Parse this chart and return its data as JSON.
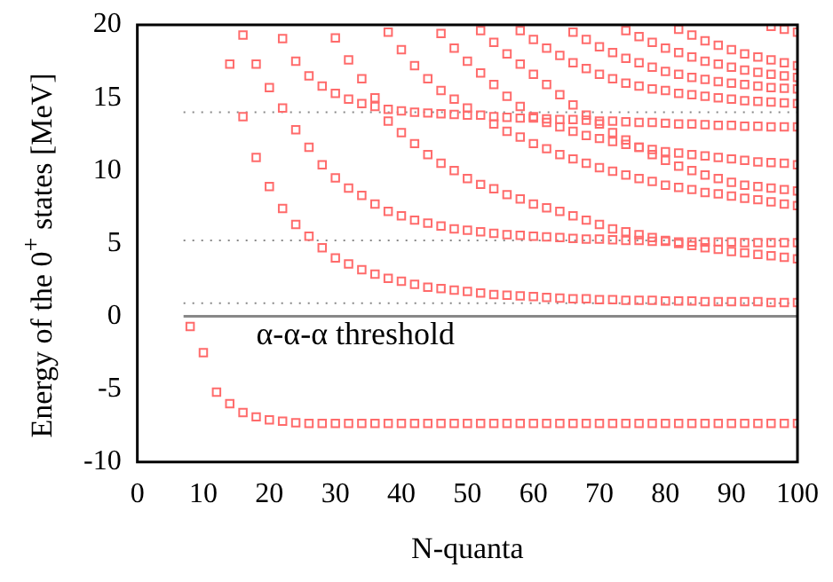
{
  "chart_data": {
    "type": "scatter",
    "xlabel": "N-quanta",
    "ylabel": "Energy of the 0$^{+}$ states [MeV]",
    "x": [
      8,
      10,
      12,
      14,
      16,
      18,
      20,
      22,
      24,
      26,
      28,
      30,
      32,
      34,
      36,
      38,
      40,
      42,
      44,
      46,
      48,
      50,
      52,
      54,
      56,
      58,
      60,
      62,
      64,
      66,
      68,
      70,
      72,
      74,
      76,
      78,
      80,
      82,
      84,
      86,
      88,
      90,
      92,
      94,
      96,
      98,
      100
    ],
    "series": [
      {
        "color": "#ff6b6b",
        "values": [
          -0.7,
          -2.5,
          -5.2,
          -6.0,
          -6.6,
          -6.9,
          -7.1,
          -7.2,
          -7.3,
          -7.35,
          -7.35,
          -7.35,
          -7.35,
          -7.35,
          -7.35,
          -7.35,
          -7.35,
          -7.35,
          -7.35,
          -7.35,
          -7.35,
          -7.35,
          -7.35,
          -7.35,
          -7.35,
          -7.35,
          -7.35,
          -7.35,
          -7.35,
          -7.35,
          -7.35,
          -7.35,
          -7.35,
          -7.35,
          -7.35,
          -7.35,
          -7.35,
          -7.35,
          -7.35,
          -7.35,
          -7.35,
          -7.35,
          -7.35,
          -7.35,
          -7.35,
          -7.35,
          -7.35
        ]
      },
      {
        "color": "#ff6b6b",
        "values": [
          null,
          null,
          null,
          17.3,
          13.7,
          10.9,
          8.9,
          7.4,
          6.3,
          5.5,
          4.7,
          4.0,
          3.6,
          3.2,
          2.9,
          2.6,
          2.4,
          2.2,
          2.0,
          1.9,
          1.8,
          1.7,
          1.6,
          1.5,
          1.45,
          1.4,
          1.35,
          1.3,
          1.25,
          1.2,
          1.2,
          1.15,
          1.15,
          1.1,
          1.1,
          1.1,
          1.05,
          1.05,
          1.05,
          1.0,
          1.0,
          1.0,
          1.0,
          1.0,
          0.95,
          0.95,
          0.95
        ]
      },
      {
        "color": "#ff6b6b",
        "values": [
          null,
          null,
          null,
          null,
          19.3,
          17.3,
          15.7,
          14.3,
          12.8,
          11.6,
          10.4,
          9.5,
          8.8,
          8.3,
          7.7,
          7.2,
          6.9,
          6.6,
          6.4,
          6.2,
          6.0,
          5.9,
          5.8,
          5.7,
          5.6,
          5.55,
          5.5,
          5.45,
          5.4,
          5.35,
          5.3,
          5.3,
          5.25,
          5.2,
          5.2,
          5.15,
          5.15,
          5.1,
          5.1,
          5.1,
          5.1,
          5.1,
          5.05,
          5.05,
          5.05,
          5.05,
          5.05
        ]
      },
      {
        "color": "#ff6b6b",
        "values": [
          null,
          null,
          null,
          null,
          null,
          null,
          null,
          19.05,
          17.5,
          16.5,
          15.8,
          15.3,
          14.9,
          14.6,
          14.4,
          14.2,
          14.1,
          14.0,
          13.95,
          13.9,
          13.85,
          13.8,
          null,
          13.7,
          13.65,
          13.6,
          13.6,
          13.55,
          13.5,
          13.5,
          13.45,
          13.4,
          13.4,
          13.35,
          13.3,
          13.3,
          13.25,
          13.2,
          13.2,
          13.15,
          13.1,
          13.1,
          13.05,
          13.05,
          13.0,
          13.0,
          13.0
        ]
      },
      {
        "color": "#ff6b6b",
        "values": [
          null,
          null,
          null,
          null,
          null,
          null,
          null,
          null,
          null,
          null,
          null,
          19.1,
          17.6,
          16.3,
          15.0,
          13.4,
          12.6,
          11.85,
          11.1,
          10.5,
          10.0,
          9.45,
          9.05,
          8.75,
          8.35,
          8.05,
          7.7,
          7.45,
          7.2,
          6.9,
          6.6,
          6.3,
          6.0,
          5.8,
          5.6,
          5.4,
          5.2,
          5.0,
          4.85,
          4.7,
          4.6,
          4.45,
          4.35,
          4.25,
          4.15,
          4.05,
          3.95
        ]
      },
      {
        "color": "#ff6b6b",
        "values": [
          null,
          null,
          null,
          null,
          null,
          null,
          null,
          null,
          null,
          null,
          null,
          null,
          null,
          null,
          null,
          19.5,
          18.3,
          17.2,
          16.3,
          15.5,
          14.9,
          14.3,
          13.8,
          13.2,
          12.7,
          12.3,
          11.85,
          11.5,
          11.1,
          10.8,
          10.5,
          10.2,
          9.95,
          9.7,
          9.45,
          9.25,
          9.0,
          8.85,
          8.7,
          8.5,
          8.4,
          8.25,
          8.1,
          8.0,
          7.85,
          7.7,
          7.6
        ]
      },
      {
        "color": "#ff6b6b",
        "values": [
          null,
          null,
          null,
          null,
          null,
          null,
          null,
          null,
          null,
          null,
          null,
          null,
          null,
          null,
          null,
          null,
          null,
          null,
          null,
          19.4,
          18.4,
          17.5,
          16.7,
          15.9,
          15.1,
          14.4,
          13.7,
          13.3,
          13.0,
          12.7,
          12.4,
          12.2,
          12.0,
          11.8,
          11.6,
          11.45,
          11.3,
          11.2,
          11.1,
          11.0,
          10.9,
          10.8,
          10.7,
          10.6,
          10.55,
          10.5,
          10.4
        ]
      },
      {
        "color": "#ff6b6b",
        "values": [
          null,
          null,
          null,
          null,
          null,
          null,
          null,
          null,
          null,
          null,
          null,
          null,
          null,
          null,
          null,
          null,
          null,
          null,
          null,
          null,
          null,
          null,
          19.6,
          18.8,
          18.0,
          17.3,
          16.6,
          15.9,
          15.2,
          14.5,
          13.8,
          13.2,
          12.6,
          12.1,
          11.6,
          11.1,
          10.7,
          10.3,
          10.0,
          9.7,
          9.45,
          9.2,
          9.0,
          8.9,
          8.8,
          8.7,
          8.6
        ]
      },
      {
        "color": "#ff6b6b",
        "values": [
          null,
          null,
          null,
          null,
          null,
          null,
          null,
          null,
          null,
          null,
          null,
          null,
          null,
          null,
          null,
          null,
          null,
          null,
          null,
          null,
          null,
          null,
          null,
          null,
          null,
          19.6,
          19.0,
          18.4,
          17.9,
          17.4,
          17.0,
          16.6,
          16.3,
          16.0,
          15.8,
          15.6,
          15.5,
          15.3,
          15.2,
          15.1,
          15.0,
          14.9,
          14.8,
          14.75,
          14.7,
          14.65,
          14.6
        ]
      },
      {
        "color": "#ff6b6b",
        "values": [
          null,
          null,
          null,
          null,
          null,
          null,
          null,
          null,
          null,
          null,
          null,
          null,
          null,
          null,
          null,
          null,
          null,
          null,
          null,
          null,
          null,
          null,
          null,
          null,
          null,
          null,
          null,
          null,
          null,
          19.5,
          19.0,
          18.5,
          18.1,
          17.7,
          17.4,
          17.1,
          16.8,
          16.6,
          16.4,
          16.25,
          16.1,
          16.0,
          15.9,
          15.8,
          15.7,
          15.65,
          15.6
        ]
      },
      {
        "color": "#ff6b6b",
        "values": [
          null,
          null,
          null,
          null,
          null,
          null,
          null,
          null,
          null,
          null,
          null,
          null,
          null,
          null,
          null,
          null,
          null,
          null,
          null,
          null,
          null,
          null,
          null,
          null,
          null,
          null,
          null,
          null,
          null,
          null,
          null,
          null,
          null,
          19.6,
          19.2,
          18.8,
          18.4,
          18.1,
          17.8,
          17.5,
          17.3,
          17.1,
          16.9,
          16.75,
          16.6,
          16.5,
          16.4
        ]
      },
      {
        "color": "#ff6b6b",
        "values": [
          null,
          null,
          null,
          null,
          null,
          null,
          null,
          null,
          null,
          null,
          null,
          null,
          null,
          null,
          null,
          null,
          null,
          null,
          null,
          null,
          null,
          null,
          null,
          null,
          null,
          null,
          null,
          null,
          null,
          null,
          null,
          null,
          null,
          null,
          null,
          null,
          null,
          19.7,
          19.3,
          18.9,
          18.6,
          18.3,
          18.0,
          17.8,
          17.6,
          17.4,
          17.2
        ]
      },
      {
        "color": "#ff6b6b",
        "values": [
          null,
          null,
          null,
          null,
          null,
          null,
          null,
          null,
          null,
          null,
          null,
          null,
          null,
          null,
          null,
          null,
          null,
          null,
          null,
          null,
          null,
          null,
          null,
          null,
          null,
          null,
          null,
          null,
          null,
          null,
          null,
          null,
          null,
          null,
          null,
          null,
          null,
          null,
          null,
          null,
          null,
          null,
          null,
          null,
          19.9,
          19.7,
          19.5
        ]
      }
    ],
    "xlim": [
      0,
      100
    ],
    "xticks": [
      0,
      10,
      20,
      30,
      40,
      50,
      60,
      70,
      80,
      90,
      100
    ],
    "ylim": [
      -10,
      20
    ],
    "yticks": [
      -10,
      -5,
      0,
      5,
      10,
      15,
      20
    ],
    "ref_lines": [
      {
        "axis": "y",
        "value": 0,
        "label": "α-α-α threshold",
        "color": "#888888",
        "line_style": "solid"
      },
      {
        "axis": "y",
        "value": 0.9,
        "color": "#888888",
        "line_style": "dotted"
      },
      {
        "axis": "y",
        "value": 5.2,
        "color": "#888888",
        "line_style": "dotted"
      },
      {
        "axis": "y",
        "value": 14,
        "color": "#888888",
        "line_style": "dotted"
      }
    ],
    "grid": false,
    "legend": false,
    "marker": "square"
  }
}
